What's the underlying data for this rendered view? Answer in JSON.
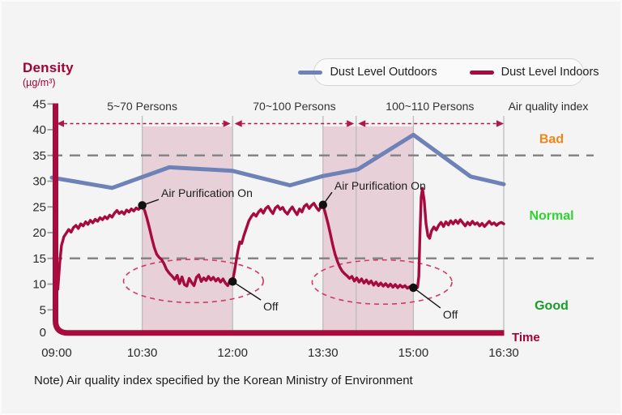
{
  "page": {
    "background": "#f4f4f4"
  },
  "legend": {
    "items": [
      {
        "label": "Dust Level Outdoors",
        "color": "#6e82b8"
      },
      {
        "label": "Dust Level Indoors",
        "color": "#a60a3e"
      }
    ]
  },
  "y_axis": {
    "title": "Density",
    "unit": "(µg/m³)",
    "ticks": [
      0,
      5,
      10,
      15,
      20,
      25,
      30,
      35,
      40,
      45
    ]
  },
  "x_axis": {
    "title": "Time",
    "ticks": [
      {
        "t": 9.0,
        "label": "09:00"
      },
      {
        "t": 10.5,
        "label": "10:30"
      },
      {
        "t": 12.0,
        "label": "12:00"
      },
      {
        "t": 13.5,
        "label": "13:30"
      },
      {
        "t": 15.0,
        "label": "15:00"
      },
      {
        "t": 16.5,
        "label": "16:30"
      }
    ]
  },
  "aqi": {
    "header": "Air quality index",
    "thresholds": [
      35,
      15
    ],
    "zones": [
      {
        "label": "Bad",
        "color": "#ef8618",
        "v": 38.3
      },
      {
        "label": "Normal",
        "color": "#2fd42f",
        "v": 23.4
      },
      {
        "label": "Good",
        "color": "#189e27",
        "v": 5.9
      }
    ]
  },
  "note": "Note) Air quality index specified by the Korean Ministry of Environment",
  "colors": {
    "accent_crimson": "#a50034",
    "outdoors_line": "#6e82b8",
    "indoors_line": "#a60a3e",
    "shade_pink": "rgba(166,10,62,0.15)",
    "gridline": "#bcbcbc",
    "threshold_dash": "#858585",
    "arrow": "#b3164a",
    "ellipse": "#d13a62",
    "annotation": "#141414"
  },
  "chart_data": {
    "type": "line",
    "title": "Indoor vs outdoor dust density over time",
    "xlabel": "Time",
    "ylabel": "Density (µg/m³)",
    "xlim": [
      9.0,
      16.5
    ],
    "ylim": [
      0,
      45
    ],
    "gridlines_t": [
      10.5,
      12.0,
      13.5,
      14.05,
      15.0,
      16.5
    ],
    "purifier_on_spans": [
      {
        "from": 10.5,
        "to": 12.0
      },
      {
        "from": 13.5,
        "to": 15.0
      }
    ],
    "person_periods": [
      {
        "label": "5~70 Persons",
        "from": 9.0,
        "to": 12.0
      },
      {
        "label": "70~100 Persons",
        "from": 12.0,
        "to": 14.05
      },
      {
        "label": "100~110 Persons",
        "from": 14.05,
        "to": 16.5
      }
    ],
    "annotations": [
      {
        "label": "Air Purification On",
        "t": 10.5,
        "v": 25.3,
        "label_t": 10.815,
        "label_v": 27.7
      },
      {
        "label": "Off",
        "t": 12.0,
        "v": 10.5,
        "label_t": 12.51,
        "label_v": 5.65
      },
      {
        "label": "Air Purification On",
        "t": 13.5,
        "v": 25.4,
        "label_t": 13.69,
        "label_v": 29.1
      },
      {
        "label": "Off",
        "t": 15.0,
        "v": 9.3,
        "label_t": 15.49,
        "label_v": 4.1
      }
    ],
    "ellipses": [
      {
        "t": 11.35,
        "v": 10.6,
        "rt": 1.16,
        "rv": 4.2
      },
      {
        "t": 14.48,
        "v": 10.4,
        "rt": 1.16,
        "rv": 4.3
      }
    ],
    "series": [
      {
        "name": "Dust Level Outdoors",
        "color": "#6e82b8",
        "width": 5,
        "points": [
          [
            9.0,
            30.7
          ],
          [
            9.4,
            29.9
          ],
          [
            10.0,
            28.7
          ],
          [
            10.95,
            32.7
          ],
          [
            12.0,
            32.0
          ],
          [
            12.95,
            29.2
          ],
          [
            13.5,
            31.0
          ],
          [
            14.08,
            32.3
          ],
          [
            15.0,
            39.0
          ],
          [
            15.95,
            30.9
          ],
          [
            16.5,
            29.4
          ]
        ]
      },
      {
        "name": "Dust Level Indoors",
        "color": "#a60a3e",
        "width": 3.4,
        "points": [
          [
            9.1,
            9.0
          ],
          [
            9.13,
            14.0
          ],
          [
            9.16,
            17.5
          ],
          [
            9.2,
            19.2
          ],
          [
            9.24,
            19.9
          ],
          [
            9.28,
            20.6
          ],
          [
            9.32,
            20.1
          ],
          [
            9.36,
            21.0
          ],
          [
            9.4,
            21.4
          ],
          [
            9.44,
            20.8
          ],
          [
            9.48,
            21.7
          ],
          [
            9.52,
            21.3
          ],
          [
            9.56,
            22.1
          ],
          [
            9.6,
            21.6
          ],
          [
            9.64,
            22.4
          ],
          [
            9.68,
            21.9
          ],
          [
            9.72,
            22.6
          ],
          [
            9.76,
            22.2
          ],
          [
            9.8,
            22.9
          ],
          [
            9.84,
            22.5
          ],
          [
            9.88,
            23.1
          ],
          [
            9.92,
            22.7
          ],
          [
            9.96,
            23.4
          ],
          [
            10.0,
            23.0
          ],
          [
            10.04,
            23.8
          ],
          [
            10.08,
            24.3
          ],
          [
            10.12,
            23.7
          ],
          [
            10.16,
            24.1
          ],
          [
            10.2,
            23.6
          ],
          [
            10.24,
            24.4
          ],
          [
            10.28,
            24.0
          ],
          [
            10.32,
            24.6
          ],
          [
            10.36,
            24.2
          ],
          [
            10.4,
            24.8
          ],
          [
            10.44,
            24.5
          ],
          [
            10.47,
            24.9
          ],
          [
            10.5,
            25.3
          ],
          [
            10.54,
            24.3
          ],
          [
            10.58,
            22.7
          ],
          [
            10.62,
            20.9
          ],
          [
            10.66,
            18.9
          ],
          [
            10.7,
            17.1
          ],
          [
            10.74,
            15.8
          ],
          [
            10.78,
            15.2
          ],
          [
            10.82,
            14.8
          ],
          [
            10.86,
            14.0
          ],
          [
            10.9,
            12.9
          ],
          [
            10.95,
            12.1
          ],
          [
            11.0,
            11.5
          ],
          [
            11.04,
            10.9
          ],
          [
            11.08,
            11.7
          ],
          [
            11.12,
            10.1
          ],
          [
            11.16,
            11.4
          ],
          [
            11.2,
            9.9
          ],
          [
            11.24,
            9.6
          ],
          [
            11.28,
            11.1
          ],
          [
            11.32,
            10.3
          ],
          [
            11.36,
            9.7
          ],
          [
            11.4,
            11.3
          ],
          [
            11.44,
            11.8
          ],
          [
            11.48,
            10.5
          ],
          [
            11.52,
            11.2
          ],
          [
            11.56,
            10.7
          ],
          [
            11.6,
            11.5
          ],
          [
            11.64,
            10.8
          ],
          [
            11.68,
            11.3
          ],
          [
            11.72,
            10.6
          ],
          [
            11.76,
            11.1
          ],
          [
            11.8,
            10.4
          ],
          [
            11.84,
            11.0
          ],
          [
            11.88,
            10.2
          ],
          [
            11.92,
            9.7
          ],
          [
            11.96,
            10.8
          ],
          [
            12.0,
            10.5
          ],
          [
            12.03,
            12.4
          ],
          [
            12.06,
            14.6
          ],
          [
            12.09,
            16.6
          ],
          [
            12.12,
            18.2
          ],
          [
            12.15,
            17.9
          ],
          [
            12.19,
            19.5
          ],
          [
            12.23,
            20.9
          ],
          [
            12.27,
            22.3
          ],
          [
            12.31,
            23.1
          ],
          [
            12.35,
            23.7
          ],
          [
            12.39,
            23.2
          ],
          [
            12.43,
            24.0
          ],
          [
            12.47,
            24.5
          ],
          [
            12.51,
            23.8
          ],
          [
            12.55,
            24.7
          ],
          [
            12.59,
            25.1
          ],
          [
            12.63,
            24.3
          ],
          [
            12.67,
            23.7
          ],
          [
            12.71,
            24.8
          ],
          [
            12.75,
            25.2
          ],
          [
            12.79,
            24.5
          ],
          [
            12.83,
            24.9
          ],
          [
            12.87,
            24.1
          ],
          [
            12.91,
            23.6
          ],
          [
            12.95,
            24.4
          ],
          [
            12.99,
            25.0
          ],
          [
            13.03,
            24.2
          ],
          [
            13.07,
            23.5
          ],
          [
            13.11,
            24.6
          ],
          [
            13.15,
            24.0
          ],
          [
            13.19,
            25.1
          ],
          [
            13.23,
            25.5
          ],
          [
            13.27,
            24.7
          ],
          [
            13.31,
            25.3
          ],
          [
            13.35,
            25.7
          ],
          [
            13.39,
            24.9
          ],
          [
            13.43,
            24.3
          ],
          [
            13.46,
            24.9
          ],
          [
            13.5,
            25.4
          ],
          [
            13.54,
            23.7
          ],
          [
            13.58,
            21.9
          ],
          [
            13.62,
            19.9
          ],
          [
            13.66,
            17.7
          ],
          [
            13.7,
            15.8
          ],
          [
            13.74,
            14.4
          ],
          [
            13.78,
            13.3
          ],
          [
            13.82,
            12.5
          ],
          [
            13.86,
            12.0
          ],
          [
            13.9,
            11.6
          ],
          [
            13.94,
            11.1
          ],
          [
            13.98,
            11.5
          ],
          [
            14.02,
            10.6
          ],
          [
            14.06,
            11.2
          ],
          [
            14.1,
            10.4
          ],
          [
            14.14,
            11.0
          ],
          [
            14.18,
            10.2
          ],
          [
            14.22,
            10.8
          ],
          [
            14.26,
            10.1
          ],
          [
            14.3,
            10.6
          ],
          [
            14.34,
            9.8
          ],
          [
            14.38,
            10.4
          ],
          [
            14.42,
            9.7
          ],
          [
            14.46,
            10.2
          ],
          [
            14.5,
            9.6
          ],
          [
            14.54,
            10.1
          ],
          [
            14.58,
            9.5
          ],
          [
            14.62,
            10.0
          ],
          [
            14.66,
            9.4
          ],
          [
            14.7,
            9.9
          ],
          [
            14.74,
            9.3
          ],
          [
            14.78,
            9.8
          ],
          [
            14.82,
            9.4
          ],
          [
            14.86,
            9.7
          ],
          [
            14.9,
            9.2
          ],
          [
            14.94,
            9.5
          ],
          [
            15.0,
            9.3
          ],
          [
            15.04,
            9.1
          ],
          [
            15.07,
            9.4
          ],
          [
            15.09,
            11.5
          ],
          [
            15.11,
            20.0
          ],
          [
            15.13,
            27.0
          ],
          [
            15.15,
            28.6
          ],
          [
            15.18,
            26.2
          ],
          [
            15.21,
            21.8
          ],
          [
            15.24,
            19.4
          ],
          [
            15.27,
            18.9
          ],
          [
            15.3,
            20.3
          ],
          [
            15.34,
            21.1
          ],
          [
            15.38,
            20.5
          ],
          [
            15.42,
            21.4
          ],
          [
            15.46,
            22.0
          ],
          [
            15.5,
            21.2
          ],
          [
            15.54,
            22.1
          ],
          [
            15.58,
            21.5
          ],
          [
            15.62,
            22.3
          ],
          [
            15.66,
            21.7
          ],
          [
            15.7,
            22.4
          ],
          [
            15.74,
            21.8
          ],
          [
            15.78,
            22.5
          ],
          [
            15.82,
            21.9
          ],
          [
            15.86,
            21.3
          ],
          [
            15.9,
            22.0
          ],
          [
            15.94,
            21.5
          ],
          [
            15.98,
            22.2
          ],
          [
            16.02,
            21.6
          ],
          [
            16.06,
            21.9
          ],
          [
            16.1,
            21.3
          ],
          [
            16.14,
            21.8
          ],
          [
            16.18,
            21.2
          ],
          [
            16.22,
            21.7
          ],
          [
            16.26,
            22.2
          ],
          [
            16.3,
            21.6
          ],
          [
            16.34,
            21.9
          ],
          [
            16.38,
            21.4
          ],
          [
            16.42,
            21.8
          ],
          [
            16.46,
            22.0
          ],
          [
            16.5,
            21.7
          ]
        ]
      }
    ]
  }
}
